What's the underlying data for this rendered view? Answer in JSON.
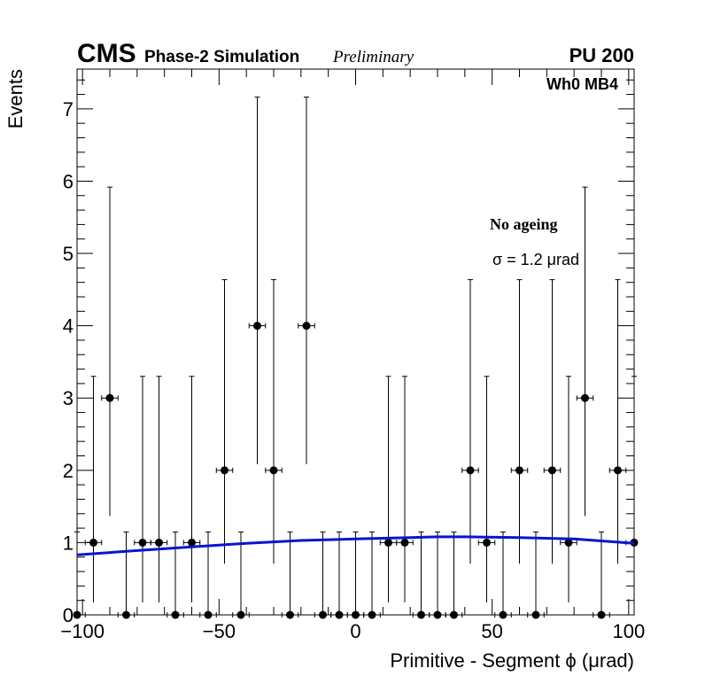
{
  "header": {
    "experiment": "CMS",
    "subtitle": "Phase-2 Simulation",
    "status": "Preliminary",
    "pileup": "PU 200"
  },
  "panel_label": "Wh0 MB4",
  "legend": {
    "title": "No ageing",
    "fit_result": "σ = 1.2  μrad"
  },
  "colors": {
    "data_points": "#000000",
    "fit_curve": "#0a14d2"
  },
  "chart_data": {
    "type": "scatter",
    "xlabel": "Primitive - Segment ϕ (μrad)",
    "ylabel": "Events",
    "xlim": [
      -102,
      102
    ],
    "ylim": [
      0,
      7.55
    ],
    "x_ticks": [
      -100,
      -50,
      0,
      50,
      100
    ],
    "x_tick_labels": [
      "−100",
      "−50",
      "0",
      "50",
      "100"
    ],
    "y_ticks": [
      0,
      1,
      2,
      3,
      4,
      5,
      6,
      7
    ],
    "y_tick_labels": [
      "0",
      "1",
      "2",
      "3",
      "4",
      "5",
      "6",
      "7"
    ],
    "grid": false,
    "bin_width": 6,
    "series": [
      {
        "style": "points-with-poisson-errors",
        "x": [
          -102,
          -96,
          -90,
          -84,
          -78,
          -72,
          -66,
          -60,
          -54,
          -48,
          -42,
          -36,
          -30,
          -24,
          -18,
          -12,
          -6,
          0,
          6,
          12,
          18,
          24,
          30,
          36,
          42,
          48,
          54,
          60,
          66,
          72,
          78,
          84,
          90,
          96,
          102
        ],
        "y": [
          0,
          1,
          3,
          0,
          1,
          1,
          0,
          1,
          0,
          2,
          0,
          4,
          2,
          0,
          4,
          0,
          0,
          0,
          0,
          1,
          1,
          0,
          0,
          0,
          2,
          1,
          0,
          2,
          0,
          2,
          1,
          3,
          0,
          2,
          1
        ]
      },
      {
        "style": "fit-curve",
        "x": [
          -102,
          -80,
          -60,
          -40,
          -20,
          0,
          10,
          20,
          30,
          40,
          60,
          80,
          102
        ],
        "y": [
          0.83,
          0.89,
          0.94,
          0.99,
          1.03,
          1.05,
          1.06,
          1.07,
          1.08,
          1.08,
          1.07,
          1.05,
          0.99
        ]
      }
    ]
  }
}
